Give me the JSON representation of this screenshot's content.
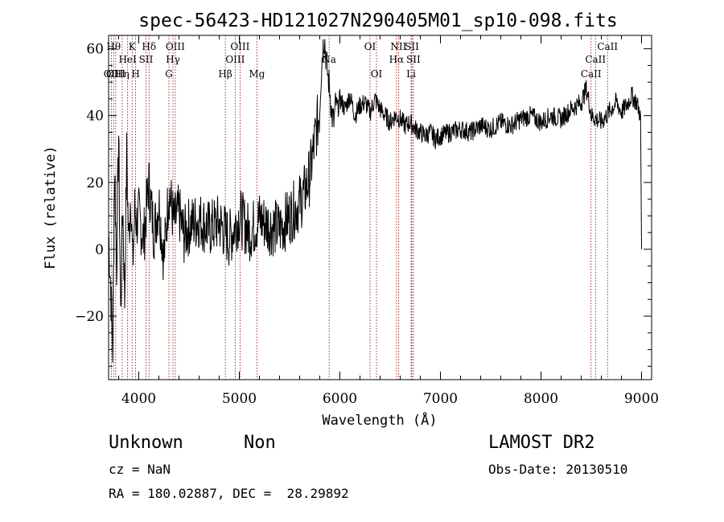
{
  "chart_data": {
    "type": "line",
    "title": "spec-56423-HD121027N290405M01_sp10-098.fits",
    "xlabel": "Wavelength (Å)",
    "ylabel": "Flux (relative)",
    "xlim": [
      3700,
      9100
    ],
    "ylim": [
      -39,
      64
    ],
    "x_ticks": [
      4000,
      5000,
      6000,
      7000,
      8000,
      9000
    ],
    "y_ticks": [
      -20,
      0,
      20,
      40,
      60
    ],
    "grid": false,
    "series": [
      {
        "x": [
          3700,
          3720,
          3740,
          3760,
          3780,
          3800,
          3820,
          3840,
          3860,
          3880,
          3900,
          3920,
          3940,
          3960,
          3980,
          4000,
          4050,
          4100,
          4150,
          4200,
          4250,
          4300,
          4350,
          4400,
          4450,
          4500,
          4600,
          4700,
          4800,
          4900,
          5000,
          5100,
          5200,
          5300,
          5400,
          5500,
          5600,
          5650,
          5700,
          5730,
          5760,
          5780,
          5800,
          5810,
          5820,
          5830,
          5840,
          5850,
          5860,
          5880,
          5900,
          5920,
          5940,
          5960,
          5980,
          6000,
          6050,
          6100,
          6150,
          6200,
          6250,
          6300,
          6350,
          6400,
          6450,
          6500,
          6550,
          6600,
          6650,
          6700,
          6750,
          6800,
          6850,
          6900,
          6950,
          7000,
          7100,
          7200,
          7300,
          7400,
          7500,
          7600,
          7700,
          7800,
          7900,
          8000,
          8100,
          8200,
          8300,
          8400,
          8450,
          8480,
          8500,
          8550,
          8600,
          8650,
          8700,
          8750,
          8800,
          8850,
          8900,
          8950,
          8990,
          9000
        ],
        "y": [
          5,
          -10,
          -30,
          25,
          -5,
          35,
          -20,
          15,
          -15,
          28,
          2,
          18,
          -5,
          12,
          8,
          10,
          3,
          20,
          5,
          14,
          -3,
          18,
          8,
          11,
          4,
          7,
          9,
          6,
          8,
          3,
          10,
          5,
          9,
          7,
          6,
          10,
          14,
          17,
          22,
          28,
          35,
          38,
          42,
          50,
          56,
          60,
          63,
          62,
          58,
          52,
          48,
          40,
          38,
          44,
          42,
          45,
          42,
          46,
          40,
          43,
          44,
          41,
          45,
          42,
          40,
          38,
          40,
          39,
          37,
          38,
          36,
          35,
          34,
          35,
          33,
          34,
          35,
          36,
          35,
          37,
          36,
          38,
          37,
          39,
          40,
          38,
          40,
          39,
          42,
          44,
          48,
          44,
          40,
          39,
          38,
          40,
          42,
          44,
          41,
          43,
          46,
          44,
          40,
          0
        ]
      }
    ],
    "lines": [
      {
        "w": 3727,
        "label": "OII",
        "row": 3
      },
      {
        "w": 3750,
        "label": "Hθ",
        "row": 1
      },
      {
        "w": 3771,
        "label": "OIII",
        "row": 3
      },
      {
        "w": 3835,
        "label": "Hη",
        "row": 3
      },
      {
        "w": 3889,
        "label": "HeI",
        "row": 2
      },
      {
        "w": 3934,
        "label": "K",
        "row": 1
      },
      {
        "w": 3969,
        "label": "H",
        "row": 3
      },
      {
        "w": 4072,
        "label": "SII",
        "row": 2
      },
      {
        "w": 4102,
        "label": "Hδ",
        "row": 1
      },
      {
        "w": 4300,
        "label": "G",
        "row": 3
      },
      {
        "w": 4340,
        "label": "Hγ",
        "row": 2
      },
      {
        "w": 4363,
        "label": "OIII",
        "row": 1
      },
      {
        "w": 4861,
        "label": "Hβ",
        "row": 3
      },
      {
        "w": 4959,
        "label": "OIII",
        "row": 2
      },
      {
        "w": 5007,
        "label": "OIII",
        "row": 1
      },
      {
        "w": 5175,
        "label": "Mg",
        "row": 3
      },
      {
        "w": 5893,
        "label": "Na",
        "row": 2
      },
      {
        "w": 6300,
        "label": "OI",
        "row": 1
      },
      {
        "w": 6364,
        "label": "OI",
        "row": 3
      },
      {
        "w": 6563,
        "label": "Hα",
        "row": 2
      },
      {
        "w": 6583,
        "label": "NII",
        "row": 1
      },
      {
        "w": 6708,
        "label": "Li",
        "row": 3
      },
      {
        "w": 6716,
        "label": "SII",
        "row": 1
      },
      {
        "w": 6731,
        "label": "SII",
        "row": 2
      },
      {
        "w": 8498,
        "label": "CaII",
        "row": 3
      },
      {
        "w": 8542,
        "label": "CaII",
        "row": 2
      },
      {
        "w": 8662,
        "label": "CaII",
        "row": 1
      }
    ]
  },
  "info": {
    "class": "Unknown",
    "subclass": "Non",
    "survey": "LAMOST DR2",
    "cz": "cz = NaN",
    "obs_date": "Obs-Date: 20130510",
    "coords": "RA = 180.02887, DEC =  28.29892"
  },
  "colors": {
    "spectrum": "#000000",
    "line_markers": "#8b0000"
  }
}
